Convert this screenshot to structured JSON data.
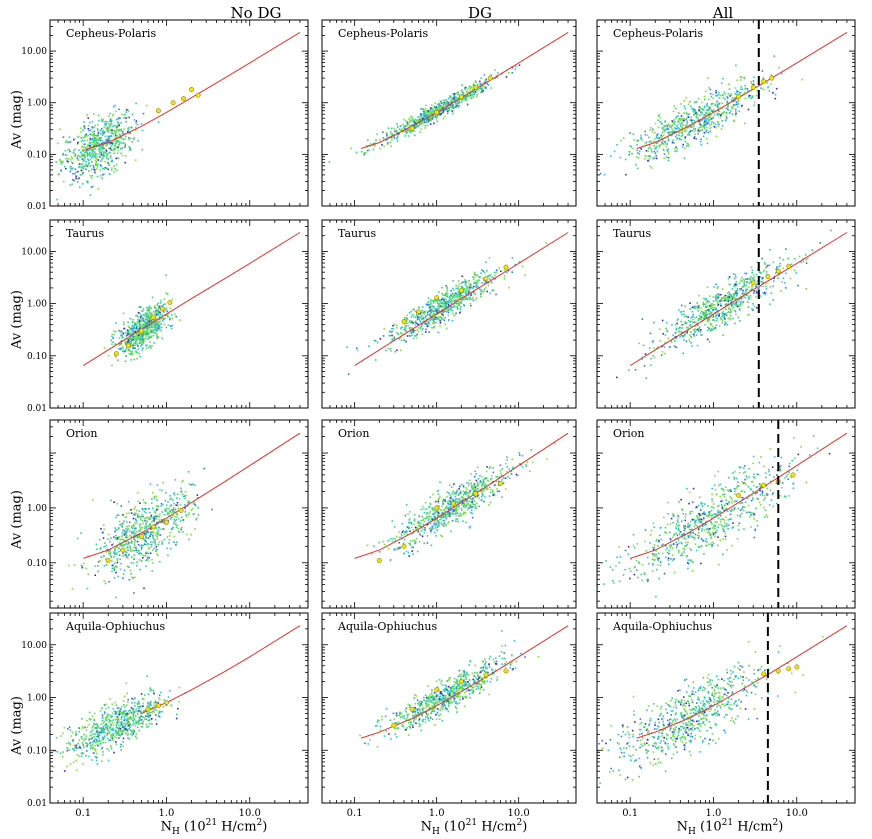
{
  "columns": [
    "No DG",
    "DG",
    "All"
  ],
  "ylabel": "Av (mag)",
  "xlabel": {
    "base": "N",
    "sub": "H",
    "mid": "  (10",
    "exp": "21",
    "tail": " H/cm",
    "exp2": "2",
    "close": ")"
  },
  "colors": {
    "fit_line": "#e8312a",
    "binned_points": "#f2e600",
    "axis": "#000000",
    "density": [
      "#3c28c8",
      "#2f7fe0",
      "#2fc2e8",
      "#2fd48c",
      "#7ee040",
      "#e6e830"
    ]
  },
  "chart_data": [
    {
      "type": "scatter",
      "row": 1,
      "col": 1,
      "cloud": "Cepheus-Polaris",
      "panel": "No DG",
      "xlim": [
        0.04,
        50
      ],
      "ylim": [
        0.01,
        40
      ],
      "xscale": "log",
      "yscale": "log",
      "ytick_labels": [
        "0.01",
        "0.10",
        "1.00",
        "10.00"
      ],
      "xtick_labels": [],
      "fit_line": {
        "x": [
          0.1,
          0.2,
          0.5,
          1.0,
          2.0,
          5.0,
          10.0,
          40.0
        ],
        "y": [
          0.12,
          0.17,
          0.35,
          0.65,
          1.25,
          3.0,
          5.9,
          23.0
        ]
      },
      "cloud_center": {
        "x": 0.15,
        "y": 0.15,
        "sx": 0.22,
        "sy": 0.28
      },
      "binned_points": {
        "x": [
          0.8,
          1.2,
          1.6,
          2.0,
          2.4
        ],
        "y": [
          0.7,
          1.0,
          1.2,
          1.8,
          1.4
        ]
      },
      "dashed_line_x": null
    },
    {
      "type": "scatter",
      "row": 1,
      "col": 2,
      "cloud": "Cepheus-Polaris",
      "panel": "DG",
      "xlim": [
        0.04,
        50
      ],
      "ylim": [
        0.01,
        40
      ],
      "xscale": "log",
      "yscale": "log",
      "ytick_labels": [],
      "xtick_labels": [],
      "fit_line": {
        "x": [
          0.12,
          0.2,
          0.5,
          1.0,
          2.0,
          5.0,
          10.0,
          40.0
        ],
        "y": [
          0.13,
          0.17,
          0.35,
          0.65,
          1.25,
          3.0,
          5.9,
          23.0
        ]
      },
      "cloud_center": {
        "x": 1.0,
        "y": 0.8,
        "sx": 0.35,
        "sy": 0.08
      },
      "binned_points": {
        "x": [
          0.5,
          1.0,
          2.0,
          3.0,
          4.5
        ],
        "y": [
          0.32,
          0.65,
          1.3,
          2.0,
          3.0
        ]
      },
      "dashed_line_x": null
    },
    {
      "type": "scatter",
      "row": 1,
      "col": 3,
      "cloud": "Cepheus-Polaris",
      "panel": "All",
      "xlim": [
        0.04,
        50
      ],
      "ylim": [
        0.01,
        40
      ],
      "xscale": "log",
      "yscale": "log",
      "ytick_labels": [],
      "xtick_labels": [],
      "fit_line": {
        "x": [
          0.12,
          0.2,
          0.5,
          1.0,
          2.0,
          5.0,
          10.0,
          40.0
        ],
        "y": [
          0.13,
          0.17,
          0.35,
          0.65,
          1.25,
          3.0,
          5.9,
          23.0
        ]
      },
      "cloud_center": {
        "x": 0.6,
        "y": 0.5,
        "sx": 0.4,
        "sy": 0.2
      },
      "binned_points": {
        "x": [
          2.0,
          3.0,
          4.0,
          5.0
        ],
        "y": [
          1.3,
          2.0,
          2.6,
          3.0
        ]
      },
      "dashed_line_x": 3.5
    },
    {
      "type": "scatter",
      "row": 2,
      "col": 1,
      "cloud": "Taurus",
      "panel": "No DG",
      "xlim": [
        0.04,
        50
      ],
      "ylim": [
        0.01,
        40
      ],
      "xscale": "log",
      "yscale": "log",
      "ytick_labels": [
        "0.01",
        "0.10",
        "1.00",
        "10.00"
      ],
      "xtick_labels": [],
      "fit_line": {
        "x": [
          0.1,
          0.2,
          0.5,
          1.0,
          2.0,
          5.0,
          10.0,
          40.0
        ],
        "y": [
          0.065,
          0.13,
          0.32,
          0.63,
          1.25,
          3.0,
          5.9,
          23.0
        ]
      },
      "cloud_center": {
        "x": 0.5,
        "y": 0.35,
        "sx": 0.15,
        "sy": 0.18
      },
      "binned_points": {
        "x": [
          0.25,
          0.35,
          0.5,
          0.7,
          0.9,
          1.1
        ],
        "y": [
          0.11,
          0.16,
          0.3,
          0.55,
          0.8,
          1.05
        ]
      },
      "dashed_line_x": null
    },
    {
      "type": "scatter",
      "row": 2,
      "col": 2,
      "cloud": "Taurus",
      "panel": "DG",
      "xlim": [
        0.04,
        50
      ],
      "ylim": [
        0.01,
        40
      ],
      "xscale": "log",
      "yscale": "log",
      "ytick_labels": [],
      "xtick_labels": [],
      "fit_line": {
        "x": [
          0.1,
          0.2,
          0.5,
          1.0,
          2.0,
          5.0,
          10.0,
          40.0
        ],
        "y": [
          0.065,
          0.13,
          0.32,
          0.63,
          1.25,
          3.0,
          5.9,
          23.0
        ]
      },
      "cloud_center": {
        "x": 1.2,
        "y": 1.3,
        "sx": 0.35,
        "sy": 0.15
      },
      "binned_points": {
        "x": [
          0.4,
          0.6,
          1.0,
          2.0,
          4.0,
          7.0
        ],
        "y": [
          0.45,
          0.7,
          1.3,
          1.8,
          3.0,
          5.0
        ]
      },
      "dashed_line_x": null
    },
    {
      "type": "scatter",
      "row": 2,
      "col": 3,
      "cloud": "Taurus",
      "panel": "All",
      "xlim": [
        0.04,
        50
      ],
      "ylim": [
        0.01,
        40
      ],
      "xscale": "log",
      "yscale": "log",
      "ytick_labels": [],
      "xtick_labels": [],
      "fit_line": {
        "x": [
          0.1,
          0.2,
          0.5,
          1.0,
          2.0,
          5.0,
          10.0,
          40.0
        ],
        "y": [
          0.065,
          0.13,
          0.32,
          0.63,
          1.25,
          3.0,
          5.9,
          23.0
        ]
      },
      "cloud_center": {
        "x": 1.2,
        "y": 1.2,
        "sx": 0.4,
        "sy": 0.2
      },
      "binned_points": {
        "x": [
          3.0,
          4.5,
          6.0,
          8.0
        ],
        "y": [
          2.5,
          3.3,
          4.2,
          5.2
        ]
      },
      "dashed_line_x": 3.5
    },
    {
      "type": "scatter",
      "row": 3,
      "col": 1,
      "cloud": "Orion",
      "panel": "No DG",
      "xlim": [
        0.04,
        50
      ],
      "ylim": [
        0.015,
        40
      ],
      "xscale": "log",
      "yscale": "log",
      "ytick_labels": [
        "0.10",
        "1.00"
      ],
      "xtick_labels": [],
      "fit_line": {
        "x": [
          0.1,
          0.2,
          0.5,
          1.0,
          2.0,
          5.0,
          10.0,
          40.0
        ],
        "y": [
          0.12,
          0.17,
          0.35,
          0.65,
          1.25,
          3.0,
          5.9,
          23.0
        ]
      },
      "cloud_center": {
        "x": 0.5,
        "y": 0.35,
        "sx": 0.3,
        "sy": 0.3
      },
      "binned_points": {
        "x": [
          0.2,
          0.3,
          0.5,
          0.7,
          1.0,
          1.5
        ],
        "y": [
          0.11,
          0.17,
          0.3,
          0.45,
          0.55,
          0.9
        ]
      },
      "dashed_line_x": null
    },
    {
      "type": "scatter",
      "row": 3,
      "col": 2,
      "cloud": "Orion",
      "panel": "DG",
      "xlim": [
        0.04,
        50
      ],
      "ylim": [
        0.015,
        40
      ],
      "xscale": "log",
      "yscale": "log",
      "ytick_labels": [],
      "xtick_labels": [],
      "fit_line": {
        "x": [
          0.1,
          0.2,
          0.5,
          1.0,
          2.0,
          5.0,
          10.0,
          40.0
        ],
        "y": [
          0.12,
          0.17,
          0.35,
          0.65,
          1.25,
          3.0,
          5.9,
          23.0
        ]
      },
      "cloud_center": {
        "x": 1.5,
        "y": 1.2,
        "sx": 0.35,
        "sy": 0.18
      },
      "binned_points": {
        "x": [
          0.2,
          0.4,
          1.0,
          1.6,
          3.0,
          6.0
        ],
        "y": [
          0.11,
          0.2,
          1.0,
          1.2,
          1.8,
          2.8
        ]
      },
      "dashed_line_x": null
    },
    {
      "type": "scatter",
      "row": 3,
      "col": 3,
      "cloud": "Orion",
      "panel": "All",
      "xlim": [
        0.04,
        50
      ],
      "ylim": [
        0.015,
        40
      ],
      "xscale": "log",
      "yscale": "log",
      "ytick_labels": [],
      "xtick_labels": [],
      "fit_line": {
        "x": [
          0.1,
          0.2,
          0.5,
          1.0,
          2.0,
          5.0,
          10.0,
          40.0
        ],
        "y": [
          0.12,
          0.17,
          0.35,
          0.65,
          1.25,
          3.0,
          5.9,
          23.0
        ]
      },
      "cloud_center": {
        "x": 0.9,
        "y": 0.6,
        "sx": 0.5,
        "sy": 0.3
      },
      "binned_points": {
        "x": [
          2.0,
          4.0,
          6.0,
          9.0
        ],
        "y": [
          1.7,
          2.6,
          3.0,
          4.0
        ]
      },
      "dashed_line_x": 6.0
    },
    {
      "type": "scatter",
      "row": 4,
      "col": 1,
      "cloud": "Aquila-Ophiuchus",
      "panel": "No DG",
      "xlim": [
        0.04,
        50
      ],
      "ylim": [
        0.01,
        40
      ],
      "xscale": "log",
      "yscale": "log",
      "ytick_labels": [
        "0.01",
        "0.10",
        "1.00",
        "10.00"
      ],
      "xtick_labels": [
        "0.1",
        "1.0",
        "10.0"
      ],
      "fit_line": {
        "x": [
          0.5,
          1.0,
          2.0,
          5.0,
          10.0,
          40.0
        ],
        "y": [
          0.5,
          0.8,
          1.4,
          3.1,
          5.9,
          23.0
        ]
      },
      "cloud_center": {
        "x": 0.25,
        "y": 0.3,
        "sx": 0.3,
        "sy": 0.2
      },
      "binned_points": {
        "x": [
          0.6,
          0.8,
          1.0
        ],
        "y": [
          0.6,
          0.7,
          0.8
        ]
      },
      "dashed_line_x": null
    },
    {
      "type": "scatter",
      "row": 4,
      "col": 2,
      "cloud": "Aquila-Ophiuchus",
      "panel": "DG",
      "xlim": [
        0.04,
        50
      ],
      "ylim": [
        0.01,
        40
      ],
      "xscale": "log",
      "yscale": "log",
      "ytick_labels": [],
      "xtick_labels": [
        "0.1",
        "1.0",
        "10.0"
      ],
      "fit_line": {
        "x": [
          0.12,
          0.2,
          0.5,
          1.0,
          2.0,
          5.0,
          10.0,
          40.0
        ],
        "y": [
          0.17,
          0.22,
          0.4,
          0.7,
          1.3,
          3.0,
          5.9,
          23.0
        ]
      },
      "cloud_center": {
        "x": 1.3,
        "y": 1.5,
        "sx": 0.35,
        "sy": 0.15
      },
      "binned_points": {
        "x": [
          0.3,
          0.5,
          1.0,
          2.0,
          4.0,
          7.0
        ],
        "y": [
          0.3,
          0.6,
          1.4,
          2.0,
          2.7,
          3.2
        ]
      },
      "dashed_line_x": null
    },
    {
      "type": "scatter",
      "row": 4,
      "col": 3,
      "cloud": "Aquila-Ophiuchus",
      "panel": "All",
      "xlim": [
        0.04,
        50
      ],
      "ylim": [
        0.01,
        40
      ],
      "xscale": "log",
      "yscale": "log",
      "ytick_labels": [],
      "xtick_labels": [
        "0.1",
        "1.0",
        "10.0"
      ],
      "fit_line": {
        "x": [
          0.12,
          0.2,
          0.5,
          1.0,
          2.0,
          5.0,
          10.0,
          40.0
        ],
        "y": [
          0.17,
          0.22,
          0.4,
          0.7,
          1.3,
          3.0,
          5.9,
          23.0
        ]
      },
      "cloud_center": {
        "x": 0.5,
        "y": 0.5,
        "sx": 0.45,
        "sy": 0.3
      },
      "binned_points": {
        "x": [
          4.0,
          6.0,
          8.0,
          10.0
        ],
        "y": [
          2.8,
          3.2,
          3.5,
          3.8
        ]
      },
      "dashed_line_x": 4.5
    }
  ]
}
